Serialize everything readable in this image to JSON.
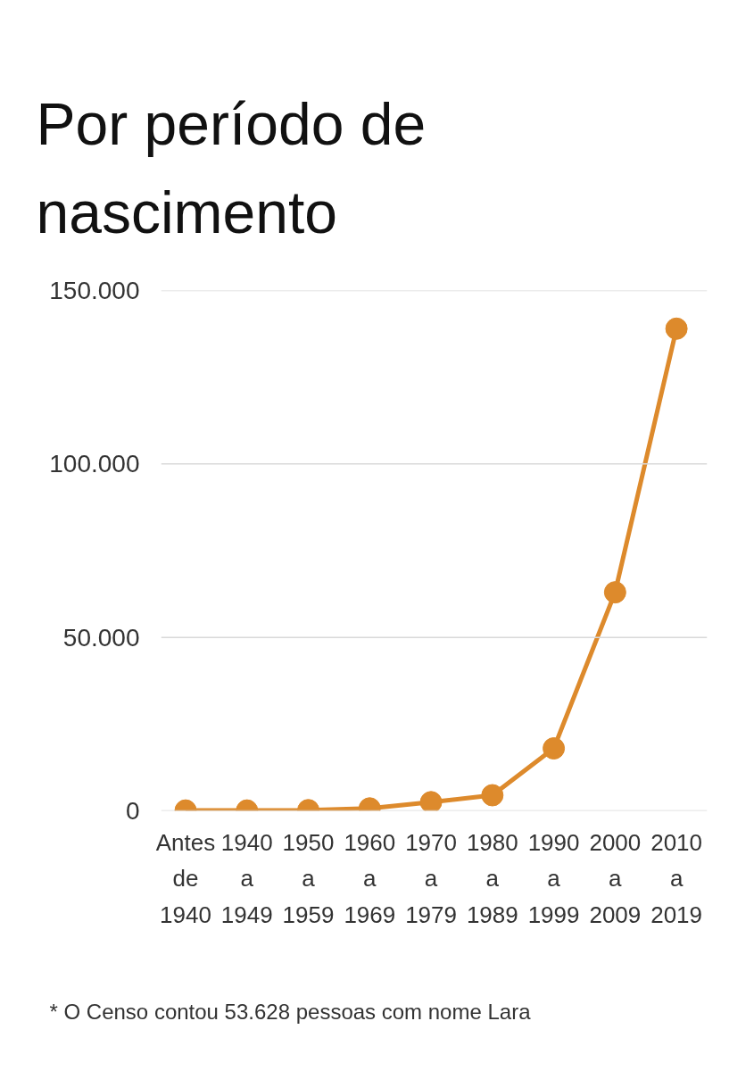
{
  "chart_data": {
    "type": "line",
    "title": "Por período de nascimento",
    "categories": [
      "Antes de 1940",
      "1940 a 1949",
      "1950 a 1959",
      "1960 a 1969",
      "1970 a 1979",
      "1980 a 1989",
      "1990 a 1999",
      "2000 a 2009",
      "2010 a 2019"
    ],
    "values": [
      100,
      100,
      200,
      700,
      2500,
      4500,
      18000,
      63000,
      139000
    ],
    "color": "#dd8a2c",
    "ylim": [
      0,
      150000
    ],
    "yticks": [
      {
        "value": 0,
        "label": "0"
      },
      {
        "value": 50000,
        "label": "50.000"
      },
      {
        "value": 100000,
        "label": "100.000"
      },
      {
        "value": 150000,
        "label": "150.000"
      }
    ],
    "grid": "y",
    "marker": "circle",
    "line_style": "solid",
    "annotations": [
      "* O Censo contou 53.628 pessoas com nome Lara"
    ]
  }
}
